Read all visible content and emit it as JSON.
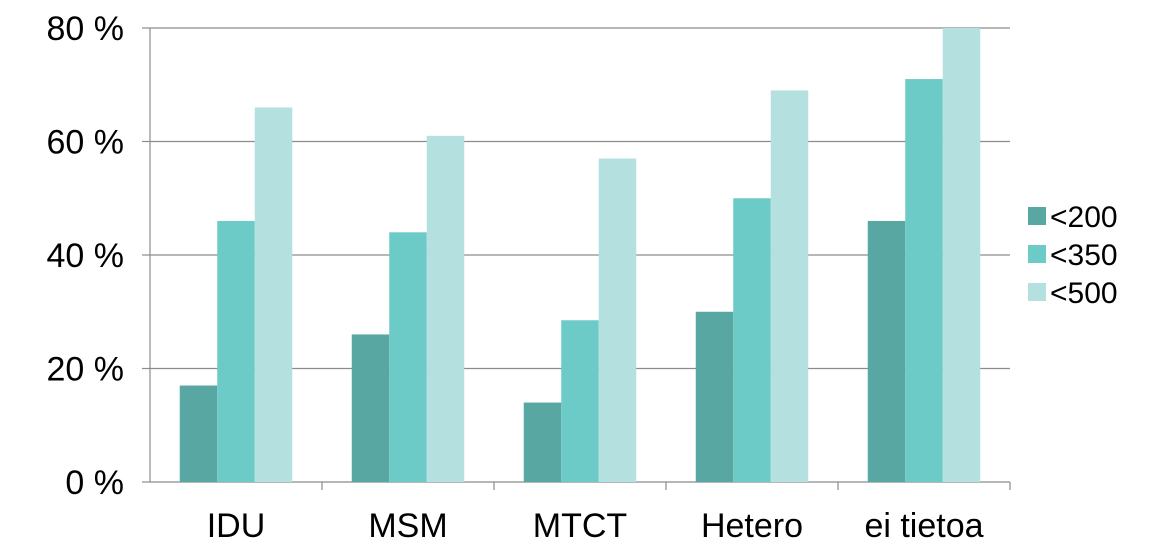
{
  "chart_data": {
    "type": "bar",
    "title": "",
    "xlabel": "",
    "ylabel": "",
    "categories": [
      "IDU",
      "MSM",
      "MTCT",
      "Hetero",
      "ei tietoa"
    ],
    "series": [
      {
        "name": "<200",
        "color": "#59a7a3",
        "values": [
          17,
          26,
          14,
          30,
          46
        ]
      },
      {
        "name": "<350",
        "color": "#6ccac7",
        "values": [
          46,
          44,
          28.5,
          50,
          71
        ]
      },
      {
        "name": "<500",
        "color": "#b4e0df",
        "values": [
          66,
          61,
          57,
          69,
          80
        ]
      }
    ],
    "ylim": [
      0,
      80
    ],
    "yticks": [
      0,
      20,
      40,
      60,
      80
    ],
    "ytick_labels": [
      "0 %",
      "20 %",
      "40 %",
      "60 %",
      "80 %"
    ],
    "grid": true,
    "legend_position": "right"
  }
}
